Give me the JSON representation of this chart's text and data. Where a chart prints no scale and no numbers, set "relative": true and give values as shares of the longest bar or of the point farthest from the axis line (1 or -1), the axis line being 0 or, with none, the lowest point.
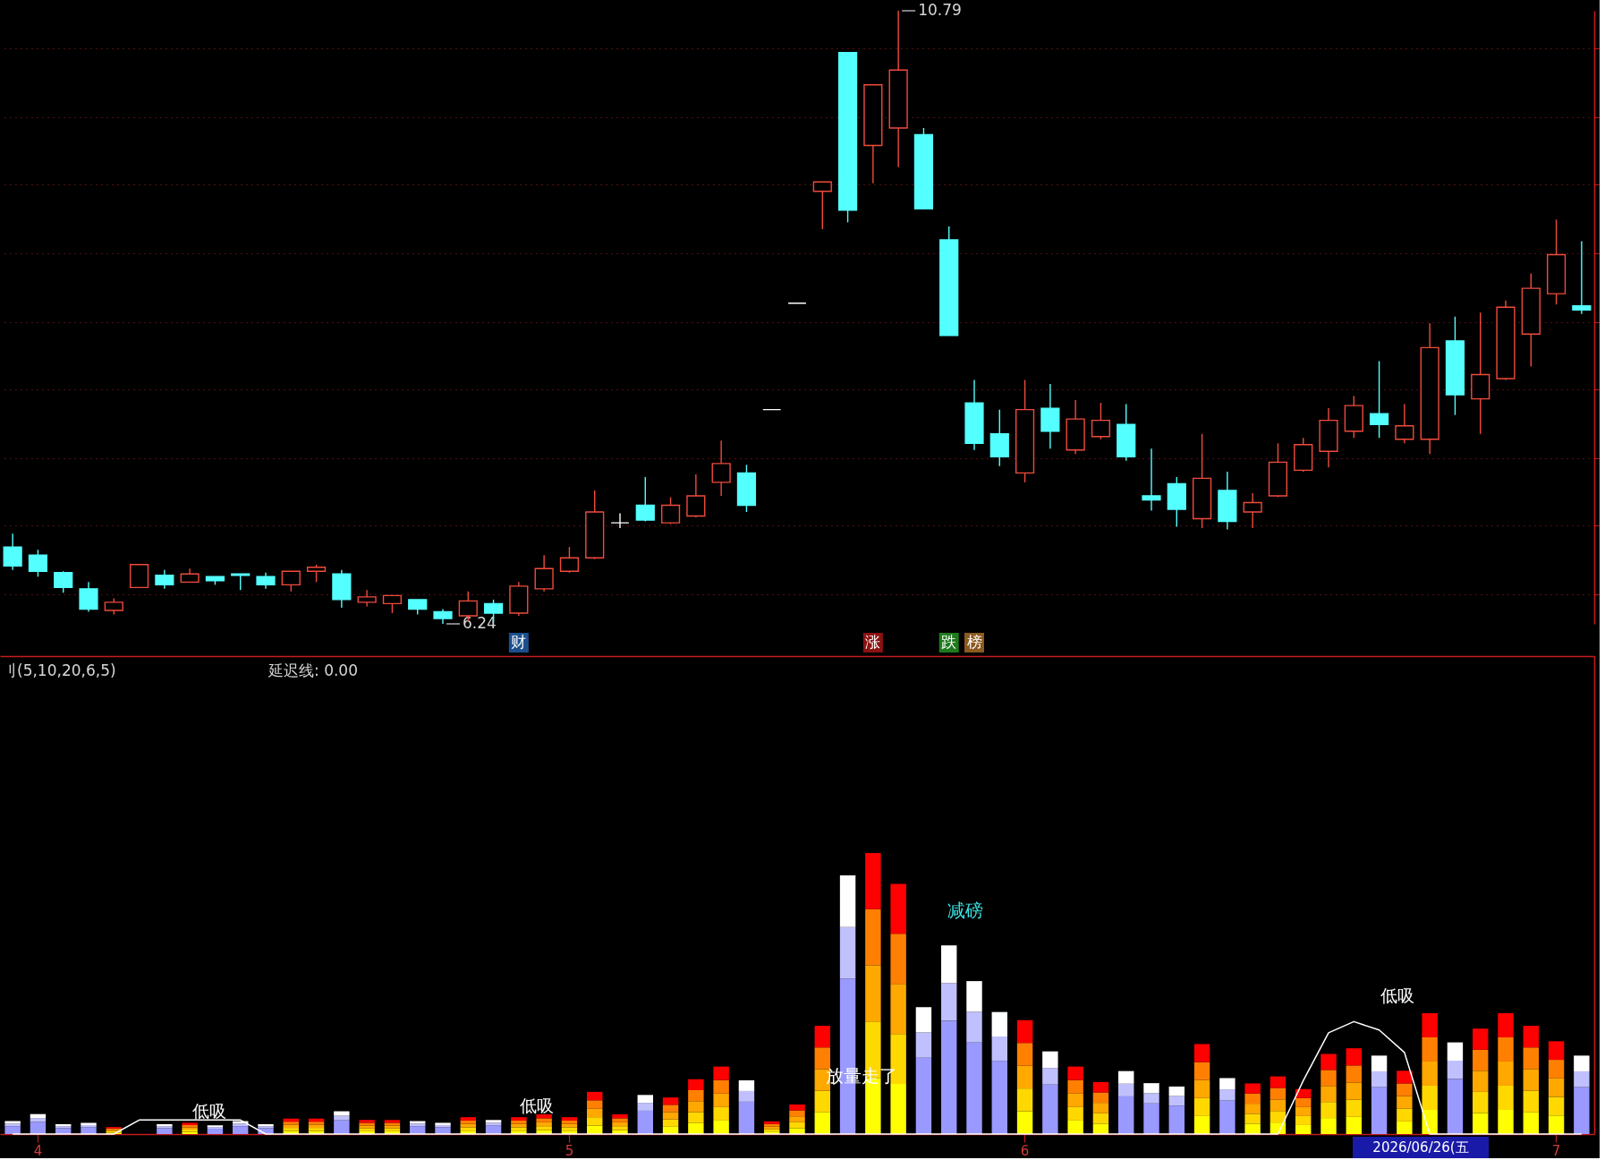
{
  "chart_data": [
    {
      "type": "candlestick",
      "categories": [
        null,
        "4",
        null,
        null,
        null,
        null,
        null,
        null,
        null,
        null,
        null,
        null,
        null,
        null,
        null,
        null,
        null,
        null,
        null,
        null,
        null,
        null,
        "5",
        null,
        null,
        null,
        null,
        null,
        null,
        null,
        null,
        null,
        null,
        null,
        null,
        null,
        null,
        null,
        null,
        null,
        "6",
        null,
        null,
        null,
        null,
        null,
        null,
        null,
        null,
        null,
        null,
        null,
        null,
        null,
        null,
        null,
        null,
        null,
        null,
        null,
        null,
        "7",
        null
      ],
      "ohlc": [
        [
          6.81,
          6.91,
          6.64,
          6.67
        ],
        [
          6.75,
          6.79,
          6.59,
          6.63
        ],
        [
          6.62,
          6.63,
          6.47,
          6.51
        ],
        [
          6.5,
          6.55,
          6.33,
          6.35
        ],
        [
          6.34,
          6.43,
          6.31,
          6.4
        ],
        [
          6.51,
          6.68,
          6.51,
          6.68
        ],
        [
          6.6,
          6.64,
          6.5,
          6.53
        ],
        [
          6.55,
          6.65,
          6.55,
          6.61
        ],
        [
          6.59,
          6.59,
          6.53,
          6.56
        ],
        [
          6.61,
          6.61,
          6.49,
          6.6
        ],
        [
          6.59,
          6.62,
          6.5,
          6.53
        ],
        [
          6.53,
          6.63,
          6.48,
          6.63
        ],
        [
          6.63,
          6.68,
          6.55,
          6.66
        ],
        [
          6.61,
          6.64,
          6.36,
          6.42
        ],
        [
          6.4,
          6.49,
          6.37,
          6.44
        ],
        [
          6.39,
          6.45,
          6.32,
          6.45
        ],
        [
          6.42,
          6.42,
          6.31,
          6.35
        ],
        [
          6.33,
          6.35,
          6.24,
          6.28
        ],
        [
          6.3,
          6.48,
          6.26,
          6.41
        ],
        [
          6.39,
          6.42,
          6.25,
          6.32
        ],
        [
          6.32,
          6.55,
          6.3,
          6.52
        ],
        [
          6.5,
          6.75,
          6.48,
          6.65
        ],
        [
          6.63,
          6.81,
          6.62,
          6.73
        ],
        [
          6.73,
          7.23,
          6.72,
          7.07
        ],
        [
          6.99,
          7.06,
          6.95,
          6.99
        ],
        [
          7.12,
          7.33,
          7.0,
          7.01
        ],
        [
          6.99,
          7.18,
          6.98,
          7.12
        ],
        [
          7.04,
          7.35,
          7.03,
          7.19
        ],
        [
          7.29,
          7.6,
          7.19,
          7.43
        ],
        [
          7.36,
          7.42,
          7.07,
          7.12
        ],
        [
          7.83,
          7.83,
          7.83,
          7.83
        ],
        [
          8.62,
          8.62,
          8.62,
          8.62
        ],
        [
          9.45,
          9.52,
          9.17,
          9.52
        ],
        [
          10.48,
          10.48,
          9.22,
          9.31
        ],
        [
          9.79,
          10.24,
          9.51,
          10.24
        ],
        [
          9.92,
          10.79,
          9.63,
          10.35
        ],
        [
          9.87,
          9.92,
          9.32,
          9.32
        ],
        [
          9.09,
          9.19,
          8.38,
          8.38
        ],
        [
          7.88,
          8.05,
          7.53,
          7.58
        ],
        [
          7.65,
          7.83,
          7.41,
          7.48
        ],
        [
          7.36,
          8.05,
          7.29,
          7.83
        ],
        [
          7.84,
          8.02,
          7.54,
          7.67
        ],
        [
          7.53,
          7.9,
          7.5,
          7.76
        ],
        [
          7.63,
          7.88,
          7.61,
          7.75
        ],
        [
          7.72,
          7.87,
          7.45,
          7.48
        ],
        [
          7.19,
          7.54,
          7.08,
          7.16
        ],
        [
          7.28,
          7.33,
          6.96,
          7.09
        ],
        [
          7.02,
          7.65,
          6.95,
          7.32
        ],
        [
          7.23,
          7.37,
          6.94,
          7.0
        ],
        [
          7.07,
          7.21,
          6.95,
          7.14
        ],
        [
          7.19,
          7.58,
          7.18,
          7.44
        ],
        [
          7.38,
          7.62,
          7.37,
          7.57
        ],
        [
          7.52,
          7.84,
          7.4,
          7.75
        ],
        [
          7.67,
          7.93,
          7.62,
          7.86
        ],
        [
          7.8,
          8.19,
          7.62,
          7.72
        ],
        [
          7.61,
          7.87,
          7.58,
          7.71
        ],
        [
          7.61,
          8.47,
          7.5,
          8.29
        ],
        [
          8.34,
          8.52,
          7.79,
          7.94
        ],
        [
          7.91,
          8.55,
          7.65,
          8.09
        ],
        [
          8.06,
          8.64,
          8.05,
          8.59
        ],
        [
          8.39,
          8.84,
          8.15,
          8.73
        ],
        [
          8.69,
          9.24,
          8.61,
          8.98
        ],
        [
          8.6,
          9.08,
          8.54,
          8.57
        ]
      ],
      "colors": [
        "#54ffff",
        "#54ffff",
        "#54ffff",
        "#54ffff",
        "#f04b3c",
        "#f04b3c",
        "#54ffff",
        "#f04b3c",
        "#54ffff",
        "#54ffff",
        "#54ffff",
        "#f04b3c",
        "#f04b3c",
        "#54ffff",
        "#f04b3c",
        "#f04b3c",
        "#54ffff",
        "#54ffff",
        "#f04b3c",
        "#54ffff",
        "#f04b3c",
        "#f04b3c",
        "#f04b3c",
        "#f04b3c",
        "#ffffff",
        "#54ffff",
        "#f04b3c",
        "#f04b3c",
        "#f04b3c",
        "#54ffff",
        "#ffffff",
        "#ffffff",
        "#f04b3c",
        "#54ffff",
        "#f04b3c",
        "#f04b3c",
        "#54ffff",
        "#54ffff",
        "#54ffff",
        "#54ffff",
        "#f04b3c",
        "#54ffff",
        "#f04b3c",
        "#f04b3c",
        "#54ffff",
        "#54ffff",
        "#54ffff",
        "#f04b3c",
        "#54ffff",
        "#f04b3c",
        "#f04b3c",
        "#f04b3c",
        "#f04b3c",
        "#f04b3c",
        "#54ffff",
        "#f04b3c",
        "#f04b3c",
        "#54ffff",
        "#f04b3c",
        "#f04b3c",
        "#f04b3c",
        "#f04b3c",
        "#54ffff"
      ],
      "yticks": [
        {
          "value": 6.46,
          "label": null
        },
        {
          "value": 6.97,
          "label": null
        },
        {
          "value": 7.47,
          "label": null
        },
        {
          "value": 7.98,
          "label": null
        },
        {
          "value": 8.48,
          "label": null
        },
        {
          "value": 8.99,
          "label": null
        },
        {
          "value": 9.5,
          "label": null
        },
        {
          "value": 10.0,
          "label": null
        },
        {
          "value": 10.51,
          "label": null
        }
      ],
      "grid": "y",
      "tick_labels": false,
      "annotations": [
        "10.79",
        "6.24",
        "财",
        "涨",
        "跌",
        "榜"
      ]
    },
    {
      "type": "bar",
      "stacked": true,
      "relative": true,
      "title": "刂(5,10,20,6,5)",
      "categories": [
        null,
        "4",
        null,
        null,
        null,
        null,
        null,
        null,
        null,
        null,
        null,
        null,
        null,
        null,
        null,
        null,
        null,
        null,
        null,
        null,
        null,
        null,
        "5",
        null,
        null,
        null,
        null,
        null,
        null,
        null,
        null,
        null,
        null,
        null,
        null,
        null,
        null,
        null,
        null,
        null,
        "6",
        null,
        null,
        null,
        null,
        null,
        null,
        null,
        null,
        null,
        null,
        null,
        null,
        null,
        null,
        null,
        null,
        null,
        null,
        null,
        null,
        "7",
        null
      ],
      "series": [
        {
          "color": "#ffff00",
          "values": [
            null,
            null,
            null,
            null,
            0.005,
            null,
            null,
            0.008,
            null,
            null,
            null,
            0.011,
            0.011,
            null,
            0.01,
            0.01,
            null,
            null,
            0.012,
            null,
            0.012,
            0.014,
            0.012,
            0.03,
            0.014,
            null,
            0.026,
            0.039,
            0.048,
            null,
            0.009,
            0.021,
            0.077,
            null,
            0.2,
            0.178,
            null,
            null,
            null,
            null,
            0.081,
            null,
            0.048,
            0.037,
            null,
            null,
            null,
            0.064,
            null,
            0.036,
            0.041,
            0.032,
            0.057,
            0.061,
            null,
            0.045,
            0.086,
            null,
            0.075,
            0.086,
            0.077,
            0.066,
            null
          ]
        },
        {
          "color": "#ffd800",
          "values": [
            null,
            null,
            null,
            null,
            0.005,
            null,
            null,
            0.008,
            null,
            null,
            null,
            0.011,
            0.011,
            null,
            0.01,
            0.01,
            null,
            null,
            0.012,
            null,
            0.012,
            0.014,
            0.012,
            0.03,
            0.014,
            null,
            0.026,
            0.039,
            0.048,
            null,
            0.009,
            0.021,
            0.077,
            null,
            0.2,
            0.178,
            null,
            null,
            null,
            null,
            0.081,
            null,
            0.048,
            0.037,
            null,
            null,
            null,
            0.064,
            null,
            0.036,
            0.041,
            0.032,
            0.057,
            0.061,
            null,
            0.045,
            0.086,
            null,
            0.075,
            0.086,
            0.077,
            0.066,
            null
          ]
        },
        {
          "color": "#ffa800",
          "values": [
            null,
            null,
            null,
            null,
            0.005,
            null,
            null,
            0.008,
            null,
            null,
            null,
            0.011,
            0.011,
            null,
            0.01,
            0.01,
            null,
            null,
            0.012,
            null,
            0.012,
            0.014,
            0.012,
            0.03,
            0.014,
            null,
            0.026,
            0.039,
            0.048,
            null,
            0.009,
            0.021,
            0.077,
            null,
            0.2,
            0.178,
            null,
            null,
            null,
            null,
            0.081,
            null,
            0.048,
            0.037,
            null,
            null,
            null,
            0.064,
            null,
            0.036,
            0.041,
            0.032,
            0.057,
            0.061,
            null,
            0.045,
            0.086,
            null,
            0.075,
            0.086,
            0.077,
            0.066,
            null
          ]
        },
        {
          "color": "#ff8000",
          "values": [
            null,
            null,
            null,
            null,
            0.005,
            null,
            null,
            0.008,
            null,
            null,
            null,
            0.011,
            0.011,
            null,
            0.01,
            0.01,
            null,
            null,
            0.012,
            null,
            0.012,
            0.014,
            0.012,
            0.03,
            0.014,
            null,
            0.026,
            0.039,
            0.048,
            null,
            0.009,
            0.021,
            0.077,
            null,
            0.2,
            0.178,
            null,
            null,
            null,
            null,
            0.081,
            null,
            0.048,
            0.037,
            null,
            null,
            null,
            0.064,
            null,
            0.036,
            0.041,
            0.032,
            0.057,
            0.061,
            null,
            0.045,
            0.086,
            null,
            0.075,
            0.086,
            0.077,
            0.066,
            null
          ]
        },
        {
          "color": "#ff0000",
          "values": [
            null,
            null,
            null,
            null,
            0.005,
            null,
            null,
            0.008,
            null,
            null,
            null,
            0.011,
            0.011,
            null,
            0.01,
            0.01,
            null,
            null,
            0.012,
            null,
            0.012,
            0.014,
            0.012,
            0.03,
            0.014,
            null,
            0.026,
            0.039,
            0.048,
            null,
            0.009,
            0.021,
            0.077,
            null,
            0.2,
            0.178,
            null,
            null,
            null,
            null,
            0.081,
            null,
            0.048,
            0.037,
            null,
            null,
            null,
            0.064,
            null,
            0.036,
            0.041,
            0.032,
            0.057,
            0.061,
            null,
            0.045,
            0.086,
            null,
            0.075,
            0.086,
            0.077,
            0.066,
            null
          ]
        },
        {
          "color": "#9999ff",
          "values": [
            0.028,
            0.043,
            0.021,
            0.024,
            null,
            null,
            0.021,
            null,
            0.019,
            0.028,
            0.021,
            null,
            null,
            0.049,
            null,
            null,
            0.028,
            0.024,
            null,
            0.03,
            null,
            null,
            null,
            null,
            null,
            0.083,
            null,
            null,
            null,
            0.115,
            null,
            null,
            null,
            0.552,
            null,
            null,
            0.271,
            0.403,
            0.326,
            0.26,
            null,
            0.176,
            null,
            null,
            0.134,
            0.109,
            0.101,
            null,
            0.119,
            null,
            null,
            null,
            null,
            null,
            0.167,
            null,
            null,
            0.196,
            null,
            null,
            null,
            null,
            0.167
          ]
        },
        {
          "color": "#c0c0ff",
          "values": [
            0.009,
            0.014,
            0.007,
            0.008,
            null,
            null,
            0.007,
            null,
            0.006,
            0.009,
            0.007,
            null,
            null,
            0.016,
            null,
            null,
            0.009,
            0.008,
            null,
            0.01,
            null,
            null,
            null,
            null,
            null,
            0.028,
            null,
            null,
            null,
            0.038,
            null,
            null,
            null,
            0.184,
            null,
            null,
            0.09,
            0.134,
            0.109,
            0.087,
            null,
            0.059,
            null,
            null,
            0.045,
            0.036,
            0.034,
            null,
            0.04,
            null,
            null,
            null,
            null,
            null,
            0.056,
            null,
            null,
            0.065,
            null,
            null,
            null,
            null,
            0.056
          ]
        },
        {
          "color": "#ffffff",
          "values": [
            0.009,
            0.014,
            0.007,
            0.008,
            null,
            null,
            0.007,
            null,
            0.006,
            0.009,
            0.007,
            null,
            null,
            0.016,
            null,
            null,
            0.009,
            0.008,
            null,
            0.01,
            null,
            null,
            null,
            null,
            null,
            0.028,
            null,
            null,
            null,
            0.038,
            null,
            null,
            null,
            0.184,
            null,
            null,
            0.09,
            0.134,
            0.109,
            0.087,
            null,
            0.059,
            null,
            null,
            0.045,
            0.036,
            0.034,
            null,
            0.04,
            null,
            null,
            null,
            null,
            null,
            0.056,
            null,
            null,
            0.065,
            null,
            null,
            null,
            null,
            0.056
          ]
        },
        {
          "type": "line",
          "color": "#ffffff",
          "values": [
            0,
            0,
            0,
            0,
            0,
            0.05,
            0.05,
            0.05,
            0.05,
            0.05,
            0,
            0,
            0,
            0,
            0,
            0,
            0,
            0,
            0,
            0,
            0,
            0,
            0,
            0,
            0,
            0,
            0,
            0,
            0,
            0,
            0,
            0,
            0,
            0,
            0,
            0,
            0,
            0,
            0,
            0,
            0,
            0,
            0,
            0,
            0,
            0,
            0,
            0,
            0,
            0,
            0,
            0.19,
            0.36,
            0.4,
            0.37,
            0.29,
            0,
            0,
            0,
            0,
            0,
            0,
            0
          ]
        }
      ],
      "tick_labels": "x",
      "annotations": [
        "延迟线: 0.00",
        "低吸",
        "低吸",
        "放量走了",
        "减磅",
        "低吸",
        "2026/06/26(五"
      ]
    }
  ]
}
